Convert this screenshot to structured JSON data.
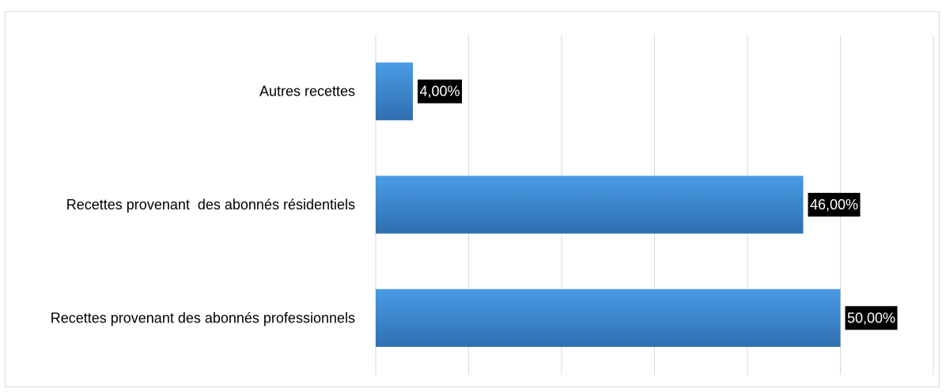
{
  "chart_data": {
    "type": "bar",
    "orientation": "horizontal",
    "categories": [
      "Autres recettes",
      "Recettes provenant  des abonnés résidentiels",
      "Recettes provenant des abonnés professionnels"
    ],
    "values": [
      4.0,
      46.0,
      50.0
    ],
    "data_labels": [
      "4,00%",
      "46,00%",
      "50,00%"
    ],
    "title": "",
    "xlabel": "",
    "ylabel": "",
    "xlim": [
      0,
      60
    ],
    "grid": true,
    "legend": "none",
    "colors": {
      "bar_top": "#4a9be6",
      "bar_bottom": "#2f6fb0",
      "label_bg": "#000000",
      "label_text": "#ffffff",
      "grid": "#d9d9d9"
    }
  }
}
